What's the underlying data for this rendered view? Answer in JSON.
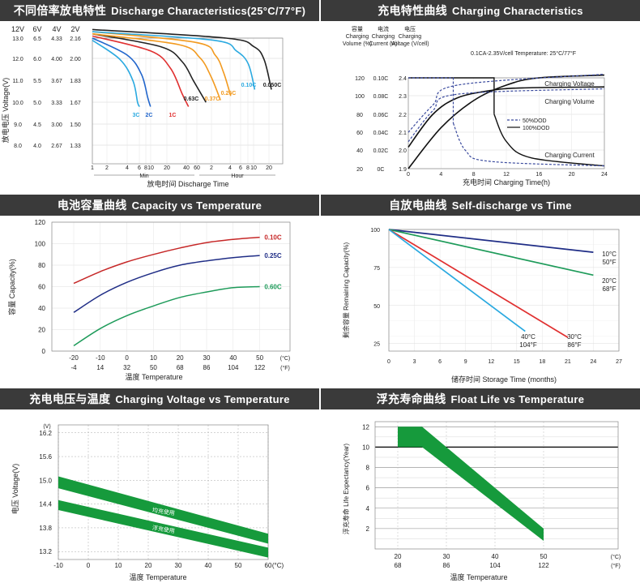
{
  "panels": {
    "p1": {
      "title_zh": "不同倍率放电特性",
      "title_en": "Discharge Characteristics(25°C/77°F)"
    },
    "p2": {
      "title_zh": "充电特性曲线",
      "title_en": "Charging Characteristics"
    },
    "p3": {
      "title_zh": "电池容量曲线",
      "title_en": "Capacity vs Temperature"
    },
    "p4": {
      "title_zh": "自放电曲线",
      "title_en": "Self-discharge vs Time"
    },
    "p5": {
      "title_zh": "充电电压与温度",
      "title_en": "Charging Voltage vs Temperature"
    },
    "p6": {
      "title_zh": "浮充寿命曲线",
      "title_en": "Float Life vs Temperature"
    }
  },
  "chart_data": [
    {
      "id": "discharge",
      "type": "line",
      "title": "不同倍率放电特性 Discharge Characteristics(25°C/77°F)",
      "xlabel": "放电时间 Discharge Time",
      "ylabel": "放电电压 Voltage(V)",
      "x_ticks": [
        "1",
        "2",
        "4",
        "6",
        "8",
        "10",
        "20",
        "40",
        "60",
        "2",
        "4",
        "6",
        "8",
        "10",
        "20"
      ],
      "x_units": [
        "Min",
        "Hour"
      ],
      "y_scales": [
        {
          "name": "12V",
          "ticks": [
            "13.0",
            "12.0",
            "11.0",
            "10.0",
            "9.0",
            "8.0"
          ]
        },
        {
          "name": "6V",
          "ticks": [
            "6.5",
            "6.0",
            "5.5",
            "5.0",
            "4.5",
            "4.0"
          ]
        },
        {
          "name": "4V",
          "ticks": [
            "4.33",
            "4.00",
            "3.67",
            "3.33",
            "3.00",
            "2.67"
          ]
        },
        {
          "name": "2V",
          "ticks": [
            "2.16",
            "2.00",
            "1.83",
            "1.67",
            "1.50",
            "1.33"
          ]
        }
      ],
      "series": [
        {
          "name": "3C",
          "color": "#2aa9e0",
          "x_min": [
            1,
            3,
            5,
            6,
            6.5
          ],
          "v12": [
            12.9,
            12.0,
            11.0,
            10.0,
            9.8
          ]
        },
        {
          "name": "2C",
          "color": "#2266cc",
          "x_min": [
            1,
            4,
            7,
            9,
            10
          ],
          "v12": [
            13.0,
            12.2,
            11.3,
            10.2,
            9.8
          ]
        },
        {
          "name": "1C",
          "color": "#e03030",
          "x_min": [
            1,
            10,
            22,
            35,
            45
          ],
          "v12": [
            13.1,
            12.4,
            11.6,
            10.4,
            9.8
          ]
        },
        {
          "name": "0.63C",
          "color": "#222222",
          "x_min": [
            1,
            15,
            35,
            55,
            90
          ],
          "v12": [
            13.2,
            12.6,
            11.9,
            11.0,
            10.0
          ]
        },
        {
          "name": "0.37C",
          "color": "#f29a1f",
          "x_min": [
            1,
            30,
            70,
            110,
            160
          ],
          "v12": [
            13.2,
            12.7,
            12.1,
            11.2,
            10.1
          ]
        },
        {
          "name": "0.26C",
          "color": "#f29a1f",
          "x_min": [
            1,
            60,
            130,
            180,
            240
          ],
          "v12": [
            13.3,
            12.8,
            12.2,
            11.4,
            10.3
          ]
        },
        {
          "name": "0.10C",
          "color": "#2aa9e0",
          "x_min": [
            1,
            120,
            300,
            480,
            620
          ],
          "v12": [
            13.3,
            12.9,
            12.4,
            11.8,
            10.6
          ]
        },
        {
          "name": "0.050C",
          "color": "#222222",
          "x_min": [
            1,
            200,
            600,
            900,
            1200
          ],
          "v12": [
            13.4,
            13.0,
            12.6,
            12.0,
            10.6
          ]
        }
      ]
    },
    {
      "id": "charging",
      "type": "line",
      "title": "充电特性曲线 Charging Characteristics",
      "xlabel": "充电时间 Charging Time(h)",
      "x_ticks": [
        "0",
        "4",
        "8",
        "12",
        "16",
        "20",
        "24"
      ],
      "xlim": [
        0,
        24
      ],
      "axis_headers": [
        {
          "zh": "容量",
          "en": "Charging Volume (%)"
        },
        {
          "zh": "电流",
          "en": "Charging Current (A)"
        },
        {
          "zh": "电压",
          "en": "Charging Voltage (V/cell)"
        }
      ],
      "y_ticks_volume": [
        "120",
        "100",
        "80",
        "60",
        "40",
        "20",
        "0"
      ],
      "y_ticks_current": [
        "0.10C",
        "0.08C",
        "0.06C",
        "0.04C",
        "0.02C",
        "0C"
      ],
      "y_ticks_voltage": [
        "2.4",
        "2.3",
        "2.2",
        "2.1",
        "2.0",
        "1.9"
      ],
      "note": "0.1CA-2.35V/cell  Temperature: 25°C/77°F",
      "legend": [
        "50%DOD",
        "100%DOD"
      ],
      "series": [
        {
          "name": "Charging Voltage",
          "x": [
            0,
            3,
            6,
            10,
            14,
            24
          ],
          "volt": [
            2.02,
            2.2,
            2.29,
            2.33,
            2.345,
            2.35
          ]
        },
        {
          "name": "Charging Volume",
          "x": [
            0,
            4,
            8,
            12,
            16,
            24
          ],
          "volume": [
            0,
            45,
            75,
            92,
            100,
            103
          ]
        },
        {
          "name": "Charging Current",
          "x": [
            0,
            10.5,
            13,
            18,
            24
          ],
          "current": [
            0.1,
            0.1,
            0.03,
            0.005,
            0.003
          ]
        }
      ],
      "annotations": [
        "Charging Voltage",
        "Charging Volume",
        "Charging Current"
      ]
    },
    {
      "id": "capacity",
      "type": "line",
      "title": "电池容量曲线 Capacity vs Temperature",
      "xlabel": "温度 Temperature",
      "ylabel": "容量 Capacity(%)",
      "x": [
        -20,
        -10,
        0,
        10,
        20,
        30,
        40,
        50
      ],
      "x_ticks_c": [
        "-20",
        "-10",
        "0",
        "10",
        "20",
        "30",
        "40",
        "50"
      ],
      "x_ticks_f": [
        "-4",
        "14",
        "32",
        "50",
        "68",
        "86",
        "104",
        "122"
      ],
      "x_units": [
        "(°C)",
        "(°F)"
      ],
      "ylim": [
        0,
        120
      ],
      "y_ticks": [
        "0",
        "20",
        "40",
        "60",
        "80",
        "100",
        "120"
      ],
      "series": [
        {
          "name": "0.10C",
          "color": "#c62828",
          "values": [
            63,
            74,
            83,
            90,
            96,
            101,
            104,
            106
          ]
        },
        {
          "name": "0.25C",
          "color": "#1f2d86",
          "values": [
            36,
            52,
            64,
            73,
            80,
            84,
            87,
            89
          ]
        },
        {
          "name": "0.60C",
          "color": "#1e9b5a",
          "values": [
            5,
            21,
            33,
            42,
            50,
            55,
            59,
            60
          ]
        }
      ]
    },
    {
      "id": "selfdischarge",
      "type": "line",
      "title": "自放电曲线 Self-discharge vs Time",
      "xlabel": "储存时间 Storage Time (months)",
      "ylabel": "剩余容量 Remaining Capacity(%)",
      "xlim": [
        0,
        27
      ],
      "x_ticks": [
        "0",
        "3",
        "6",
        "9",
        "12",
        "15",
        "18",
        "21",
        "24",
        "27"
      ],
      "y_ticks": [
        "100",
        "75",
        "50",
        "25"
      ],
      "series": [
        {
          "name": "10°C 50°F",
          "color": "#1f2d86",
          "x": [
            0,
            24
          ],
          "values": [
            100,
            85
          ]
        },
        {
          "name": "20°C 68°F",
          "color": "#1e9b5a",
          "x": [
            0,
            24
          ],
          "values": [
            100,
            70
          ]
        },
        {
          "name": "30°C 86°F",
          "color": "#e03030",
          "x": [
            0,
            21
          ],
          "values": [
            100,
            29
          ]
        },
        {
          "name": "40°C 104°F",
          "color": "#2aa9e0",
          "x": [
            0,
            16
          ],
          "values": [
            100,
            33
          ]
        }
      ],
      "labels": [
        {
          "l1": "10°C",
          "l2": "50°F"
        },
        {
          "l1": "20°C",
          "l2": "68°F"
        },
        {
          "l1": "30°C",
          "l2": "86°F"
        },
        {
          "l1": "40°C",
          "l2": "104°F"
        }
      ]
    },
    {
      "id": "chargevoltage",
      "type": "area",
      "title": "充电电压与温度 Charging Voltage vs Temperature",
      "xlabel": "温度 Temperature",
      "ylabel": "电压 Voltage(V)",
      "y_unit": "(V)",
      "x_unit": "(°C)",
      "x_ticks": [
        "-10",
        "0",
        "10",
        "20",
        "30",
        "40",
        "50",
        "60"
      ],
      "y_ticks": [
        "16.2",
        "15.6",
        "15.0",
        "14.4",
        "13.8",
        "13.2"
      ],
      "xlim": [
        -10,
        60
      ],
      "ylim": [
        13.0,
        16.4
      ],
      "bands": [
        {
          "name": "均充使用",
          "x": [
            -10,
            60
          ],
          "upper": [
            15.1,
            13.65
          ],
          "lower": [
            14.8,
            13.4
          ]
        },
        {
          "name": "浮充使用",
          "x": [
            -10,
            60
          ],
          "upper": [
            14.5,
            13.3
          ],
          "lower": [
            14.25,
            13.05
          ]
        }
      ]
    },
    {
      "id": "floatlife",
      "type": "area",
      "title": "浮充寿命曲线 Float Life vs Temperature",
      "xlabel": "温度 Temperature",
      "ylabel": "浮充寿命 Life Expectancy(Year)",
      "xlim": [
        15,
        55
      ],
      "ylim": [
        0,
        12
      ],
      "x_ticks_c": [
        "20",
        "30",
        "40",
        "50"
      ],
      "x_ticks_f": [
        "68",
        "86",
        "104",
        "122"
      ],
      "x_units": [
        "(°C)",
        "(°F)"
      ],
      "y_ticks": [
        "2",
        "4",
        "6",
        "8",
        "10",
        "12"
      ],
      "band": {
        "x": [
          20,
          25,
          50
        ],
        "upper": [
          12,
          12,
          2
        ],
        "lower": [
          10,
          10,
          0.8
        ]
      }
    }
  ]
}
